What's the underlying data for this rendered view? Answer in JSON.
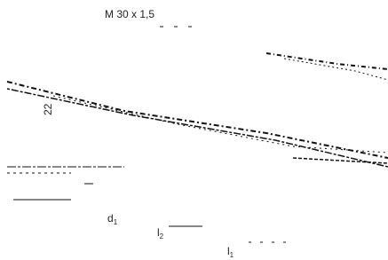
{
  "labels": {
    "thread": "M 30 x 1,5",
    "angle": "22",
    "d1": {
      "text": "d",
      "sub": "1"
    },
    "l2": {
      "text": "l",
      "sub": "2"
    },
    "l1": {
      "text": "l",
      "sub": "1"
    }
  }
}
